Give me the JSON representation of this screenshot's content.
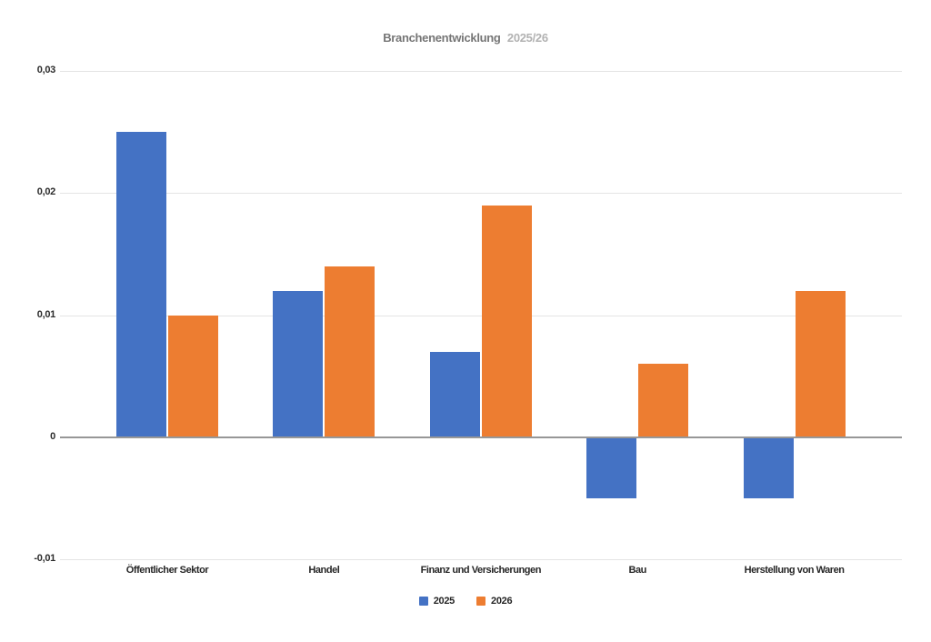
{
  "title": {
    "main": "Branchenentwicklung",
    "suffix": "2025/26"
  },
  "chart_data": {
    "type": "bar",
    "title": "Branchenentwicklung 2025/26",
    "categories": [
      "Öffentlicher Sektor",
      "Handel",
      "Finanz und Versicherungen",
      "Bau",
      "Herstellung von Waren"
    ],
    "series": [
      {
        "name": "2025",
        "color": "#4472C4",
        "values": [
          0.025,
          0.012,
          0.007,
          -0.005,
          -0.005
        ]
      },
      {
        "name": "2026",
        "color": "#ED7D31",
        "values": [
          0.01,
          0.014,
          0.019,
          0.006,
          0.012
        ]
      }
    ],
    "ylim": [
      -0.01,
      0.03
    ],
    "yticks": [
      {
        "value": 0.03,
        "label": "0,03"
      },
      {
        "value": 0.02,
        "label": "0,02"
      },
      {
        "value": 0.01,
        "label": "0,01"
      },
      {
        "value": 0,
        "label": "0"
      },
      {
        "value": -0.01,
        "label": "-0,01"
      }
    ],
    "xlabel": "",
    "ylabel": "",
    "grid": true,
    "legend_position": "bottom",
    "colors": {
      "gridline": "#e4e4e4",
      "zero_line": "#979797",
      "tick_text": "#2b2b2b"
    }
  }
}
